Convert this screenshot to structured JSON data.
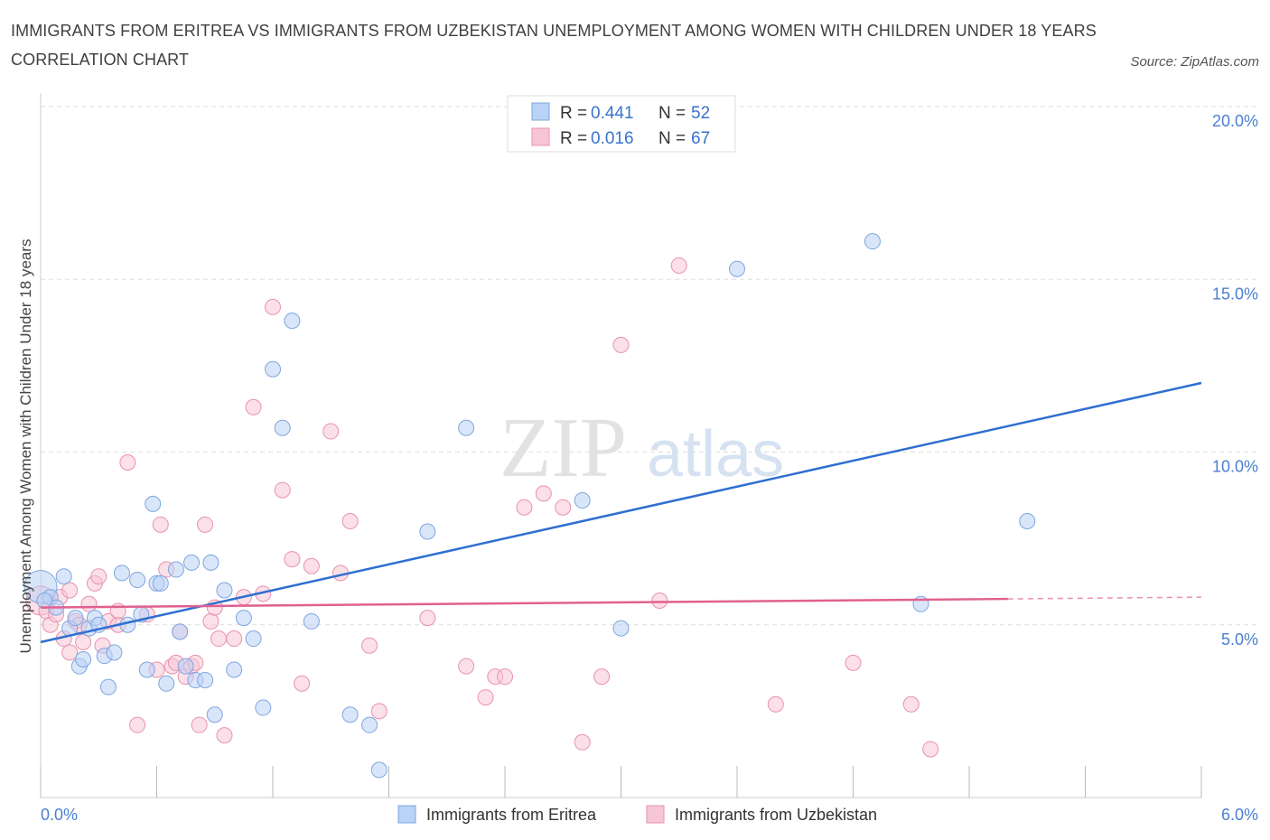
{
  "title": "IMMIGRANTS FROM ERITREA VS IMMIGRANTS FROM UZBEKISTAN UNEMPLOYMENT AMONG WOMEN WITH CHILDREN UNDER 18 YEARS CORRELATION CHART",
  "source": "Source: ZipAtlas.com",
  "watermark": {
    "zip": "ZIP",
    "atlas": "atlas"
  },
  "legend": {
    "rows": [
      {
        "r_label": "R = ",
        "r_value": "0.441",
        "n_label": "N = ",
        "n_value": "52"
      },
      {
        "r_label": "R = ",
        "r_value": "0.016",
        "n_label": "N = ",
        "n_value": "67"
      }
    ]
  },
  "colors": {
    "eritrea_fill": "#b9d2f5",
    "eritrea_stroke": "#7fa6de",
    "eritrea_line": "#2f6fd0",
    "uzbek_fill": "#f7c6d6",
    "uzbek_stroke": "#e892ae",
    "uzbek_line": "#e06090",
    "grid": "#dddddd",
    "tick_label": "#4a7fd0"
  },
  "chart_data": {
    "type": "scatter",
    "title": "IMMIGRANTS FROM ERITREA VS IMMIGRANTS FROM UZBEKISTAN UNEMPLOYMENT AMONG WOMEN WITH CHILDREN UNDER 18 YEARS CORRELATION CHART",
    "xlabel": "",
    "ylabel": "Unemployment Among Women with Children Under 18 years",
    "xlim": [
      0,
      6
    ],
    "ylim": [
      0,
      20
    ],
    "x_tick_labels": [
      "0.0%",
      "6.0%"
    ],
    "y_ticks": [
      5,
      10,
      15,
      20
    ],
    "y_tick_labels": [
      "5.0%",
      "10.0%",
      "15.0%",
      "20.0%"
    ],
    "grid": true,
    "legend_position": "top-center",
    "series": [
      {
        "name": "Immigrants from Eritrea",
        "R": 0.441,
        "N": 52,
        "trend": {
          "x": [
            0,
            6
          ],
          "y": [
            4.5,
            12.0
          ]
        },
        "points": [
          [
            0.0,
            6.1
          ],
          [
            0.05,
            5.8
          ],
          [
            0.08,
            5.5
          ],
          [
            0.12,
            6.4
          ],
          [
            0.15,
            4.9
          ],
          [
            0.18,
            5.2
          ],
          [
            0.2,
            3.8
          ],
          [
            0.22,
            4.0
          ],
          [
            0.25,
            4.9
          ],
          [
            0.28,
            5.2
          ],
          [
            0.3,
            5.0
          ],
          [
            0.33,
            4.1
          ],
          [
            0.35,
            3.2
          ],
          [
            0.38,
            4.2
          ],
          [
            0.42,
            6.5
          ],
          [
            0.45,
            5.0
          ],
          [
            0.5,
            6.3
          ],
          [
            0.52,
            5.3
          ],
          [
            0.55,
            3.7
          ],
          [
            0.58,
            8.5
          ],
          [
            0.6,
            6.2
          ],
          [
            0.62,
            6.2
          ],
          [
            0.65,
            3.3
          ],
          [
            0.7,
            6.6
          ],
          [
            0.72,
            4.8
          ],
          [
            0.75,
            3.8
          ],
          [
            0.78,
            6.8
          ],
          [
            0.8,
            3.4
          ],
          [
            0.85,
            3.4
          ],
          [
            0.88,
            6.8
          ],
          [
            0.9,
            2.4
          ],
          [
            0.95,
            6.0
          ],
          [
            1.0,
            3.7
          ],
          [
            1.05,
            5.2
          ],
          [
            1.1,
            4.6
          ],
          [
            1.15,
            2.6
          ],
          [
            1.2,
            12.4
          ],
          [
            1.25,
            10.7
          ],
          [
            1.3,
            13.8
          ],
          [
            1.4,
            5.1
          ],
          [
            1.6,
            2.4
          ],
          [
            1.7,
            2.1
          ],
          [
            1.75,
            0.8
          ],
          [
            2.0,
            7.7
          ],
          [
            2.2,
            10.7
          ],
          [
            2.8,
            8.6
          ],
          [
            3.0,
            4.9
          ],
          [
            3.6,
            15.3
          ],
          [
            4.3,
            16.1
          ],
          [
            4.55,
            5.6
          ],
          [
            5.1,
            8.0
          ],
          [
            0.02,
            5.7
          ]
        ]
      },
      {
        "name": "Immigrants from Uzbekistan",
        "R": 0.016,
        "N": 67,
        "trend": {
          "x": [
            0,
            5.0
          ],
          "y": [
            5.5,
            5.75
          ]
        },
        "trend_dashed": {
          "x": [
            5.0,
            6.0
          ],
          "y": [
            5.75,
            5.8
          ]
        },
        "points": [
          [
            0.0,
            5.7
          ],
          [
            0.03,
            5.4
          ],
          [
            0.05,
            5.0
          ],
          [
            0.08,
            5.3
          ],
          [
            0.1,
            5.8
          ],
          [
            0.12,
            4.6
          ],
          [
            0.15,
            4.2
          ],
          [
            0.18,
            5.1
          ],
          [
            0.2,
            5.0
          ],
          [
            0.22,
            4.5
          ],
          [
            0.25,
            5.6
          ],
          [
            0.28,
            6.2
          ],
          [
            0.3,
            6.4
          ],
          [
            0.32,
            4.4
          ],
          [
            0.35,
            5.1
          ],
          [
            0.4,
            5.0
          ],
          [
            0.45,
            9.7
          ],
          [
            0.5,
            2.1
          ],
          [
            0.55,
            5.3
          ],
          [
            0.6,
            3.7
          ],
          [
            0.62,
            7.9
          ],
          [
            0.65,
            6.6
          ],
          [
            0.68,
            3.8
          ],
          [
            0.7,
            3.9
          ],
          [
            0.72,
            4.8
          ],
          [
            0.75,
            3.5
          ],
          [
            0.78,
            3.8
          ],
          [
            0.8,
            3.9
          ],
          [
            0.82,
            2.1
          ],
          [
            0.85,
            7.9
          ],
          [
            0.88,
            5.1
          ],
          [
            0.9,
            5.5
          ],
          [
            0.95,
            1.8
          ],
          [
            1.0,
            4.6
          ],
          [
            1.05,
            5.8
          ],
          [
            1.1,
            11.3
          ],
          [
            1.15,
            5.9
          ],
          [
            1.2,
            14.2
          ],
          [
            1.25,
            8.9
          ],
          [
            1.3,
            6.9
          ],
          [
            1.35,
            3.3
          ],
          [
            1.4,
            6.7
          ],
          [
            1.5,
            10.6
          ],
          [
            1.55,
            6.5
          ],
          [
            1.6,
            8.0
          ],
          [
            1.7,
            4.4
          ],
          [
            1.75,
            2.5
          ],
          [
            2.0,
            5.2
          ],
          [
            2.2,
            3.8
          ],
          [
            2.3,
            2.9
          ],
          [
            2.35,
            3.5
          ],
          [
            2.4,
            3.5
          ],
          [
            2.5,
            8.4
          ],
          [
            2.6,
            8.8
          ],
          [
            2.7,
            8.4
          ],
          [
            2.8,
            1.6
          ],
          [
            2.9,
            3.5
          ],
          [
            3.0,
            13.1
          ],
          [
            3.2,
            5.7
          ],
          [
            3.3,
            15.4
          ],
          [
            3.8,
            2.7
          ],
          [
            4.2,
            3.9
          ],
          [
            4.5,
            2.7
          ],
          [
            4.6,
            1.4
          ],
          [
            0.15,
            6.0
          ],
          [
            0.4,
            5.4
          ],
          [
            0.92,
            4.6
          ]
        ]
      }
    ]
  }
}
